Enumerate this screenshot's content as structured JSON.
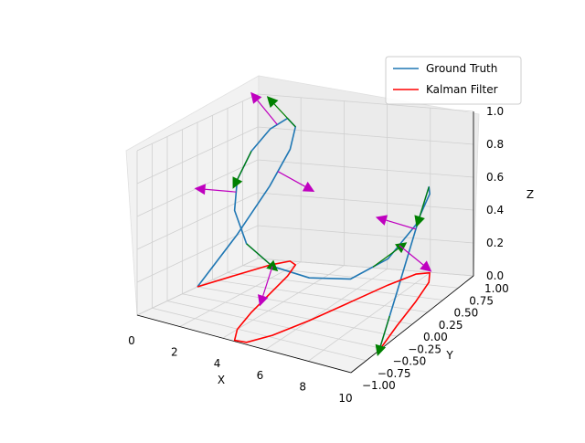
{
  "chart_data": {
    "type": "line",
    "projection": "3d",
    "title": "",
    "xlabel": "X",
    "ylabel": "Y",
    "zlabel": "Z",
    "xlim": [
      0,
      10
    ],
    "ylim": [
      -1.0,
      1.0
    ],
    "zlim": [
      0.0,
      1.0
    ],
    "xticks": [
      "0",
      "2",
      "4",
      "6",
      "8",
      "10"
    ],
    "yticks": [
      "−1.00",
      "−0.75",
      "−0.50",
      "−0.25",
      "0.00",
      "0.25",
      "0.50",
      "0.75",
      "1.00"
    ],
    "zticks": [
      "0.0",
      "0.2",
      "0.4",
      "0.6",
      "0.8",
      "1.0"
    ],
    "grid": true,
    "legend_position": "upper right",
    "series": [
      {
        "name": "Ground Truth",
        "color": "#1f77b4",
        "x": [
          0,
          0.5,
          1.0,
          1.5,
          2.0,
          2.5,
          3.0,
          3.5,
          4.0,
          4.5,
          5.0,
          5.5,
          6.0,
          6.5,
          7.0,
          7.5,
          8.0,
          8.5,
          9.0,
          9.5,
          10.0
        ],
        "y": [
          0.0,
          0.47,
          0.84,
          1.0,
          0.91,
          0.6,
          0.14,
          -0.35,
          -0.76,
          -0.98,
          -0.96,
          -0.71,
          -0.28,
          0.22,
          0.66,
          0.94,
          0.99,
          0.8,
          0.41,
          -0.08,
          -0.54
        ],
        "z": [
          0.0,
          0.24,
          0.48,
          0.68,
          0.84,
          0.96,
          1.0,
          0.98,
          0.91,
          0.79,
          0.6,
          0.42,
          0.26,
          0.14,
          0.16,
          0.3,
          0.48,
          0.58,
          0.44,
          0.2,
          0.0
        ]
      },
      {
        "name": "Kalman Filter",
        "color": "#ff0000",
        "x": [
          0,
          0.5,
          1.0,
          1.5,
          2.0,
          2.5,
          3.0,
          3.5,
          4.0,
          4.5,
          5.0,
          5.5,
          6.0,
          6.5,
          7.0,
          7.5,
          8.0,
          8.5,
          9.0,
          9.5,
          10.0
        ],
        "y": [
          0.0,
          0.47,
          0.84,
          1.0,
          0.91,
          0.6,
          0.14,
          -0.35,
          -0.76,
          -0.98,
          -0.96,
          -0.71,
          -0.28,
          0.22,
          0.66,
          0.94,
          0.99,
          0.8,
          0.41,
          -0.08,
          -0.54
        ],
        "z": [
          0,
          0,
          0,
          0,
          0,
          0,
          0,
          0,
          0,
          0,
          0,
          0,
          0,
          0,
          0,
          0,
          0,
          0,
          0,
          0,
          0
        ]
      }
    ],
    "arrows": [
      {
        "color": "#008000",
        "t": [
          0.2,
          0.35,
          0.5,
          0.68,
          0.85,
          0.97
        ]
      },
      {
        "color": "#bf00bf",
        "t": [
          0.12,
          0.28,
          0.42,
          0.55,
          0.72,
          0.9
        ]
      }
    ]
  },
  "legend": {
    "items": [
      {
        "label": "Ground Truth",
        "color": "#1f77b4"
      },
      {
        "label": "Kalman Filter",
        "color": "#ff0000"
      }
    ]
  }
}
